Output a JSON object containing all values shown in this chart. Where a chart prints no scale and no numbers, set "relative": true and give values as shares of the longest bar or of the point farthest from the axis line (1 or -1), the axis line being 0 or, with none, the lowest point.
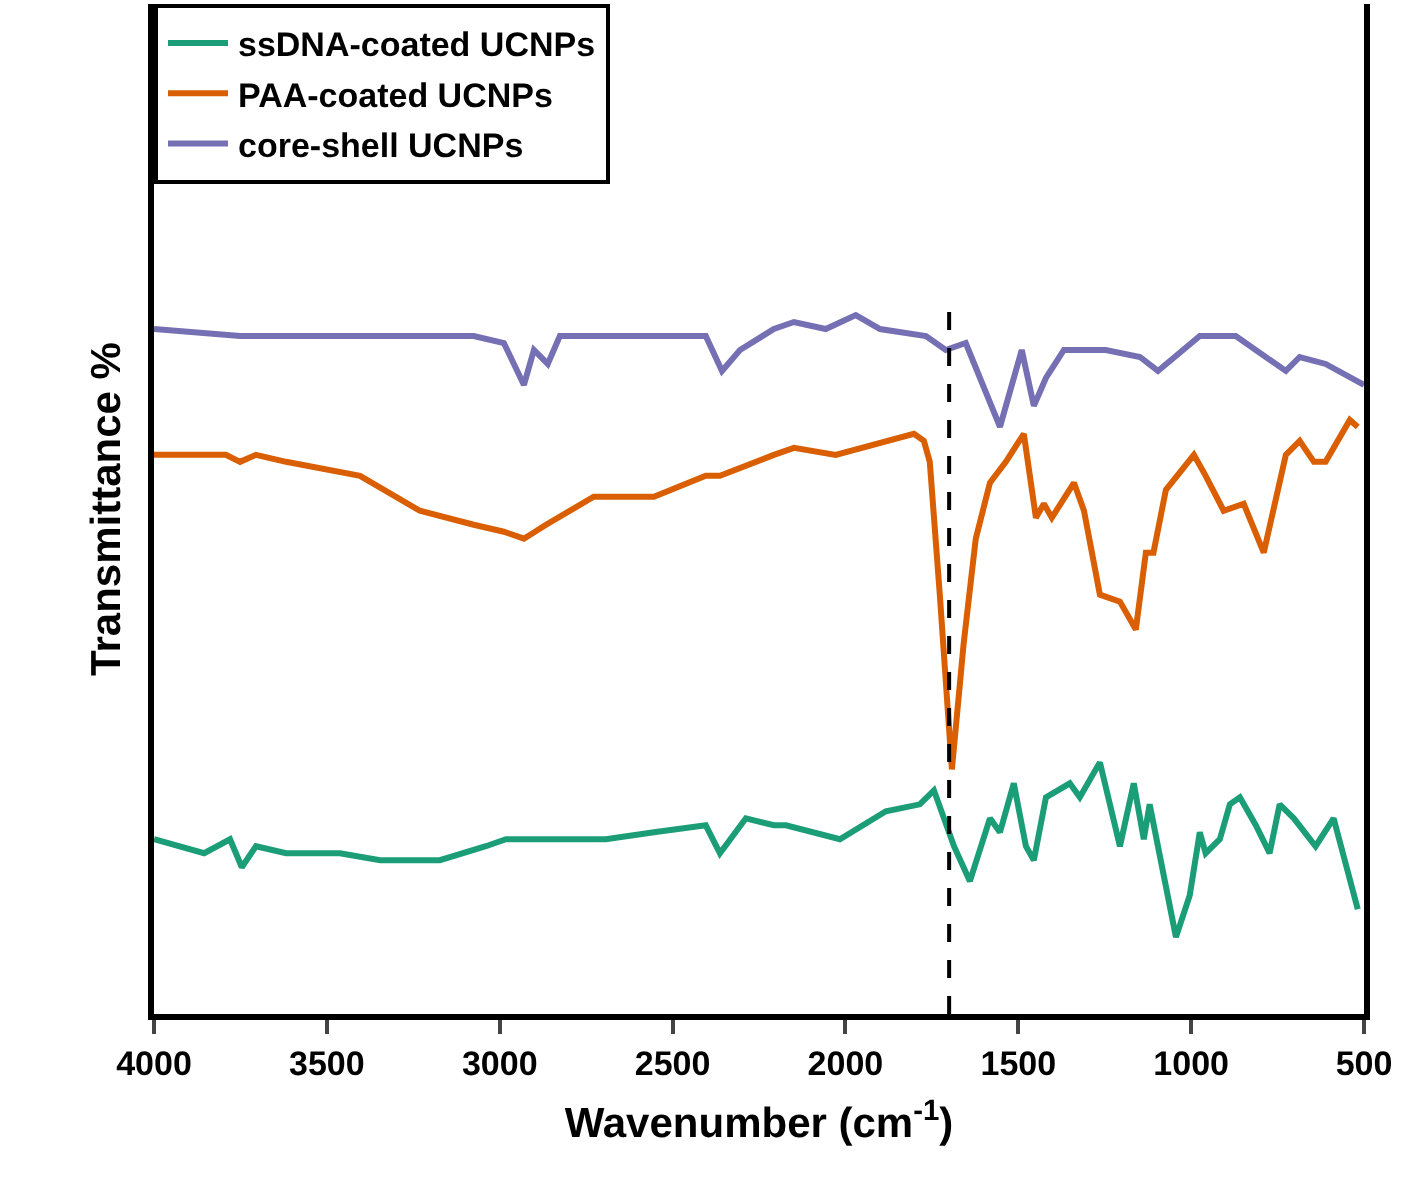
{
  "chart_data": {
    "type": "line",
    "relative": true,
    "xlabel": "Wavenumber (cm$^{-1}$)",
    "ylabel": "Transmittance %",
    "xlim": [
      4000,
      500
    ],
    "xticks": [
      4000,
      3500,
      3000,
      2500,
      2000,
      1500,
      1000,
      500
    ],
    "legend": "top left",
    "grid": false,
    "marker": "none",
    "line_style": "solid",
    "tick_labels": "x",
    "ref_lines": [
      {
        "axis": "x",
        "value": 1700,
        "color": "#000000",
        "line_style": "dashed"
      }
    ],
    "series": [
      {
        "name": "ssDNA-coated UCNPs",
        "color": "#1b9e77",
        "x": [
          4000,
          3855,
          3780,
          3746,
          3705,
          3618,
          3462,
          3346,
          3173,
          3040,
          2982,
          2942,
          2693,
          2554,
          2404,
          2363,
          2288,
          2207,
          2172,
          2016,
          1883,
          1785,
          1744,
          1686,
          1640,
          1582,
          1553,
          1513,
          1478,
          1455,
          1420,
          1351,
          1322,
          1264,
          1206,
          1166,
          1137,
          1120,
          1044,
          1004,
          975,
          958,
          917,
          888,
          859,
          813,
          773,
          744,
          703,
          640,
          588,
          518
        ],
        "values": [
          0.25,
          0.23,
          0.25,
          0.21,
          0.24,
          0.23,
          0.23,
          0.22,
          0.22,
          0.24,
          0.25,
          0.25,
          0.25,
          0.26,
          0.27,
          0.23,
          0.28,
          0.27,
          0.27,
          0.25,
          0.29,
          0.3,
          0.32,
          0.24,
          0.19,
          0.28,
          0.26,
          0.33,
          0.24,
          0.22,
          0.31,
          0.33,
          0.31,
          0.36,
          0.24,
          0.33,
          0.25,
          0.3,
          0.11,
          0.17,
          0.26,
          0.23,
          0.25,
          0.3,
          0.31,
          0.27,
          0.23,
          0.3,
          0.28,
          0.24,
          0.28,
          0.15
        ]
      },
      {
        "name": "PAA-coated UCNPs",
        "color": "#d95f02",
        "x": [
          4000,
          3792,
          3751,
          3705,
          3618,
          3404,
          3231,
          3075,
          2988,
          2930,
          2866,
          2728,
          2554,
          2404,
          2363,
          2207,
          2149,
          2028,
          1802,
          1773,
          1756,
          1727,
          1692,
          1658,
          1623,
          1582,
          1536,
          1484,
          1449,
          1426,
          1403,
          1339,
          1310,
          1264,
          1206,
          1160,
          1131,
          1109,
          1073,
          992,
          958,
          906,
          848,
          790,
          726,
          686,
          645,
          611,
          541,
          518
        ],
        "values": [
          0.8,
          0.8,
          0.79,
          0.8,
          0.79,
          0.77,
          0.72,
          0.7,
          0.69,
          0.68,
          0.7,
          0.74,
          0.74,
          0.77,
          0.77,
          0.8,
          0.81,
          0.8,
          0.83,
          0.82,
          0.79,
          0.6,
          0.35,
          0.53,
          0.68,
          0.76,
          0.79,
          0.83,
          0.71,
          0.73,
          0.71,
          0.76,
          0.72,
          0.6,
          0.59,
          0.55,
          0.66,
          0.66,
          0.75,
          0.8,
          0.77,
          0.72,
          0.73,
          0.66,
          0.8,
          0.82,
          0.79,
          0.79,
          0.85,
          0.84
        ]
      },
      {
        "name": "core-shell UCNPs",
        "color": "#7570b3",
        "x": [
          4000,
          3751,
          3075,
          2988,
          2930,
          2901,
          2861,
          2826,
          2404,
          2357,
          2305,
          2207,
          2149,
          2057,
          1970,
          1900,
          1767,
          1710,
          1652,
          1553,
          1490,
          1455,
          1420,
          1368,
          1247,
          1148,
          1096,
          975,
          871,
          726,
          686,
          611,
          500
        ],
        "values": [
          0.98,
          0.97,
          0.97,
          0.96,
          0.9,
          0.95,
          0.93,
          0.97,
          0.97,
          0.92,
          0.95,
          0.98,
          0.99,
          0.98,
          1.0,
          0.98,
          0.97,
          0.95,
          0.96,
          0.84,
          0.95,
          0.87,
          0.91,
          0.95,
          0.95,
          0.94,
          0.92,
          0.97,
          0.97,
          0.92,
          0.94,
          0.93,
          0.9
        ]
      }
    ]
  }
}
